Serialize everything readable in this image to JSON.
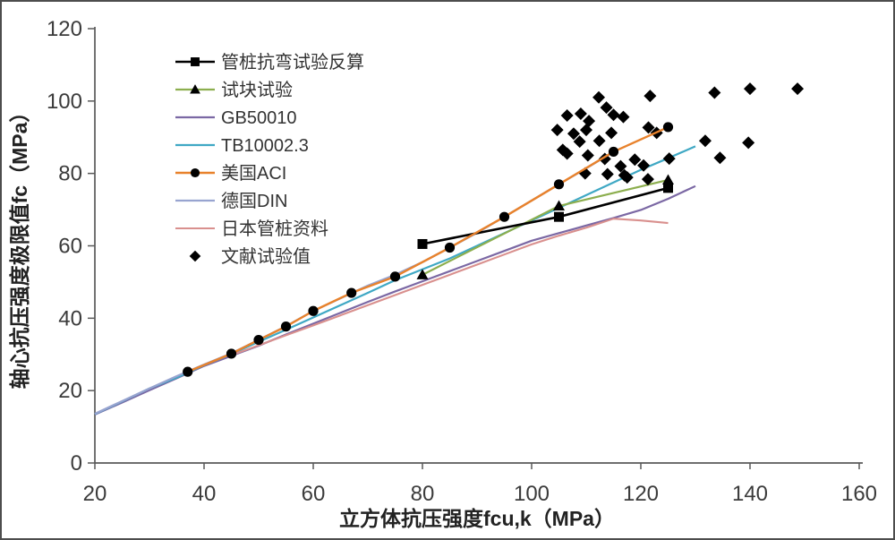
{
  "figure": {
    "background": "#ffffff",
    "border_color": "#4d4d4d",
    "axis_color": "#595959",
    "text_color": "#3b3b3b"
  },
  "chart_data": {
    "type": "line+scatter",
    "title": "",
    "xlabel": "立方体抗压强度fcu,k（MPa）",
    "ylabel": "轴心抗压强度极限值fc（MPa）",
    "xlim": [
      20,
      160
    ],
    "ylim": [
      0,
      120
    ],
    "xticks": [
      20,
      40,
      60,
      80,
      100,
      120,
      140,
      160
    ],
    "yticks": [
      0,
      20,
      40,
      60,
      80,
      100,
      120
    ],
    "grid": false,
    "legend_position": "top-left-inside",
    "series": [
      {
        "name": "管桩抗弯试验反算",
        "type": "line",
        "line_color": "#000000",
        "line_width": 2.6,
        "marker": "square",
        "marker_fill": "#AE3B3F",
        "marker_stroke": "#7E2B2E",
        "points": [
          [
            80,
            60.5
          ],
          [
            105,
            68
          ],
          [
            125,
            76
          ]
        ]
      },
      {
        "name": "试块试验",
        "type": "line",
        "line_color": "#8CAE4E",
        "line_width": 2.2,
        "marker": "triangle",
        "marker_fill": "#8CAE4E",
        "marker_stroke": "#71903B",
        "points": [
          [
            80,
            52
          ],
          [
            105,
            71
          ],
          [
            125,
            78.2
          ]
        ]
      },
      {
        "name": "GB50010",
        "type": "line",
        "line_color": "#7B68A4",
        "line_width": 2.2,
        "marker": "x",
        "marker_fill": "#7B68A4",
        "marker_stroke": "#7B68A4",
        "points": [
          [
            20,
            13.4
          ],
          [
            25,
            16.7
          ],
          [
            30,
            20.1
          ],
          [
            35,
            23.4
          ],
          [
            40,
            26.8
          ],
          [
            45,
            29.6
          ],
          [
            50,
            32.4
          ],
          [
            55,
            35.5
          ],
          [
            60,
            38.5
          ],
          [
            65,
            41.5
          ],
          [
            70,
            44.5
          ],
          [
            75,
            47.4
          ],
          [
            80,
            50.2
          ],
          [
            85,
            53
          ],
          [
            90,
            55.8
          ],
          [
            95,
            58.6
          ],
          [
            100,
            61.4
          ],
          [
            105,
            63.5
          ],
          [
            110,
            65.6
          ],
          [
            115,
            67.7
          ],
          [
            120,
            69.9
          ],
          [
            125,
            73
          ],
          [
            130,
            76.5
          ]
        ]
      },
      {
        "name": "TB10002.3",
        "type": "line",
        "line_color": "#3FA8C4",
        "line_width": 2.2,
        "marker": "asterisk",
        "marker_fill": "#3FA8C4",
        "marker_stroke": "#3FA8C4",
        "points": [
          [
            20,
            13.5
          ],
          [
            25,
            17
          ],
          [
            30,
            20.6
          ],
          [
            35,
            23.6
          ],
          [
            40,
            27
          ],
          [
            45,
            30.1
          ],
          [
            50,
            33.5
          ],
          [
            55,
            36.8
          ],
          [
            60,
            40.2
          ],
          [
            65,
            43.6
          ],
          [
            70,
            47
          ],
          [
            75,
            50.5
          ],
          [
            80,
            53.5
          ],
          [
            85,
            56.5
          ],
          [
            90,
            60
          ],
          [
            95,
            63.5
          ],
          [
            100,
            67
          ],
          [
            105,
            70.5
          ],
          [
            110,
            74
          ],
          [
            115,
            77.5
          ],
          [
            120,
            81
          ],
          [
            125,
            84.2
          ],
          [
            130,
            87.5
          ]
        ]
      },
      {
        "name": "美国ACI",
        "type": "line",
        "line_color": "#E8822C",
        "line_width": 2.4,
        "marker": "circle",
        "marker_fill": "#E8822C",
        "marker_stroke": "#BE6820",
        "points": [
          [
            37,
            25.2
          ],
          [
            45,
            30.2
          ],
          [
            50,
            34
          ],
          [
            55,
            37.7
          ],
          [
            60,
            42
          ],
          [
            67,
            47
          ],
          [
            75,
            51.5
          ],
          [
            85,
            59.5
          ],
          [
            95,
            68
          ],
          [
            105,
            77
          ],
          [
            115,
            86
          ],
          [
            125,
            92.8
          ]
        ]
      },
      {
        "name": "德国DIN",
        "type": "line",
        "line_color": "#98A4D0",
        "line_width": 2.3,
        "marker": "plus",
        "marker_fill": "#98A4D0",
        "marker_stroke": "#98A4D0",
        "points": [
          [
            20,
            13.6
          ],
          [
            25,
            17.1
          ],
          [
            30,
            20.6
          ],
          [
            35,
            24
          ],
          [
            40,
            27.2
          ],
          [
            45,
            30.3
          ],
          [
            50,
            34
          ],
          [
            55,
            37.8
          ],
          [
            60,
            42
          ],
          [
            65,
            45.5
          ],
          [
            70,
            49
          ],
          [
            75,
            52
          ],
          [
            80,
            55.5
          ],
          [
            85,
            59.5
          ],
          [
            90,
            63.6
          ],
          [
            95,
            68
          ],
          [
            100,
            72.5
          ],
          [
            105,
            77
          ],
          [
            110,
            81.4
          ],
          [
            115,
            86
          ]
        ]
      },
      {
        "name": "日本管桩资料",
        "type": "line",
        "line_color": "#D9908E",
        "line_width": 2.1,
        "marker": "dash",
        "marker_fill": "#D9908E",
        "marker_stroke": "#D9908E",
        "points": [
          [
            45,
            29.8
          ],
          [
            50,
            32.5
          ],
          [
            55,
            35.3
          ],
          [
            60,
            38
          ],
          [
            65,
            40.8
          ],
          [
            70,
            43.6
          ],
          [
            75,
            46.4
          ],
          [
            80,
            49.2
          ],
          [
            85,
            52
          ],
          [
            90,
            54.8
          ],
          [
            95,
            57.6
          ],
          [
            100,
            60.4
          ],
          [
            105,
            62.8
          ],
          [
            110,
            65
          ],
          [
            115,
            67.5
          ],
          [
            120,
            67
          ],
          [
            125,
            66.3
          ]
        ]
      },
      {
        "name": "文献试验值",
        "type": "scatter",
        "line_color": "none",
        "line_width": 0,
        "marker": "diamond",
        "marker_fill": "#3A6DB5",
        "marker_stroke": "#3A6DB5",
        "points": [
          [
            104.7,
            92
          ],
          [
            105.7,
            86.5
          ],
          [
            106.5,
            96
          ],
          [
            106.5,
            85.5
          ],
          [
            107.7,
            91
          ],
          [
            108.8,
            88.8
          ],
          [
            109,
            96.5
          ],
          [
            109.8,
            80
          ],
          [
            110,
            92
          ],
          [
            110.3,
            85
          ],
          [
            110.5,
            94.5
          ],
          [
            112.3,
            101
          ],
          [
            112.4,
            89
          ],
          [
            113.4,
            84
          ],
          [
            113.7,
            98.2
          ],
          [
            113.9,
            79.8
          ],
          [
            114.6,
            91.2
          ],
          [
            115,
            96.2
          ],
          [
            116.3,
            82
          ],
          [
            116.8,
            95.6
          ],
          [
            117,
            79.5
          ],
          [
            117.5,
            78.9
          ],
          [
            118.9,
            83.8
          ],
          [
            120.5,
            82.2
          ],
          [
            121.3,
            78.4
          ],
          [
            121.4,
            92.7
          ],
          [
            121.7,
            101.4
          ],
          [
            122.9,
            91.2
          ],
          [
            125.2,
            84.1
          ],
          [
            131.8,
            89
          ],
          [
            133.5,
            102.3
          ],
          [
            134.5,
            84.3
          ],
          [
            139.7,
            88.5
          ],
          [
            140,
            103.4
          ],
          [
            148.7,
            103.4
          ]
        ]
      }
    ]
  }
}
